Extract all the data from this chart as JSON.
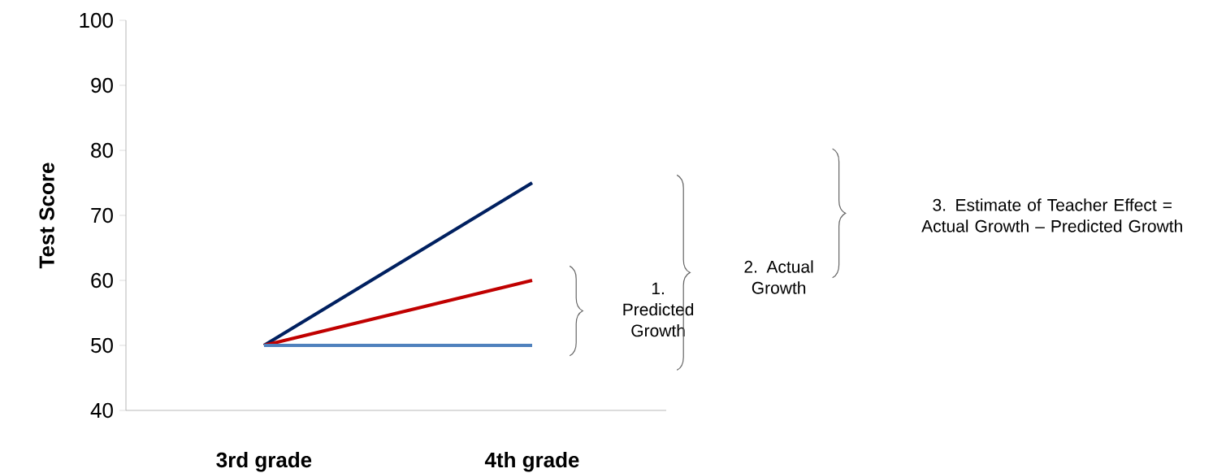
{
  "chart_data": {
    "type": "line",
    "ylabel": "Test Score",
    "categories": [
      "3rd grade",
      "4th grade"
    ],
    "series": [
      {
        "color": "#002060",
        "values": [
          50,
          75
        ]
      },
      {
        "color": "#c00000",
        "values": [
          50,
          60
        ]
      },
      {
        "color": "#4f81bd",
        "values": [
          50,
          50
        ]
      }
    ],
    "ylim": [
      40,
      100
    ],
    "yticks": [
      40,
      50,
      60,
      70,
      80,
      90,
      100
    ],
    "annotations": [
      "1. Predicted Growth",
      "2. Actual Growth",
      "3. Estimate of Teacher Effect  = Actual Growth – Predicted Growth"
    ]
  }
}
